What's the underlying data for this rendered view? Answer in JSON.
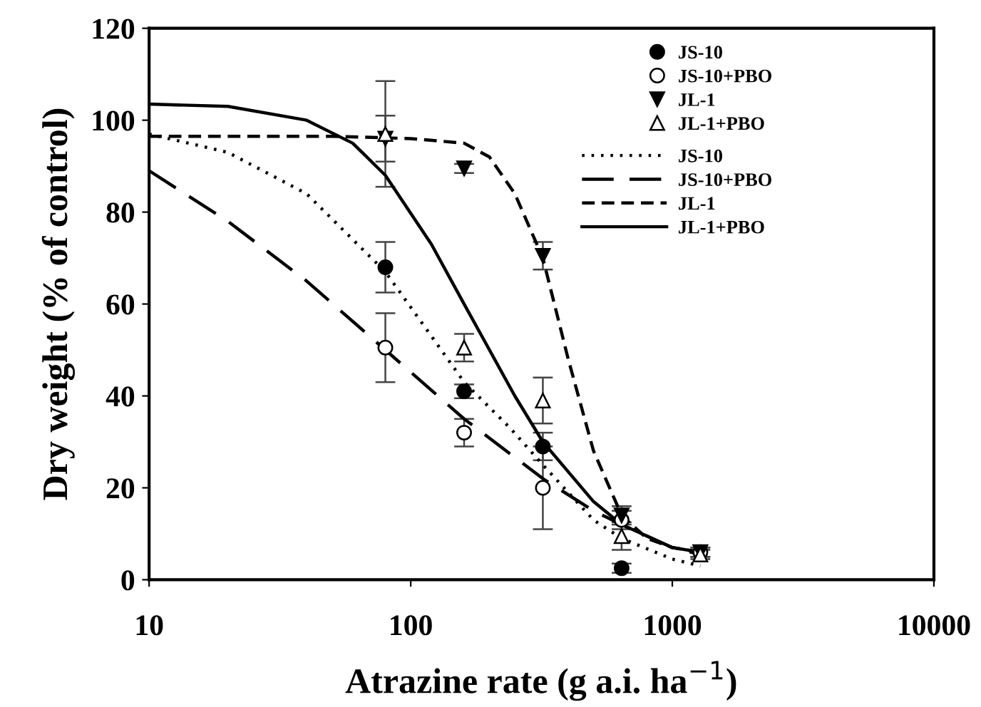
{
  "chart_data": {
    "type": "scatter",
    "xlabel": "Atrazine rate (g a.i. ha$^{−1}$)",
    "ylabel": "Dry weight (% of control)",
    "log": "x",
    "xlim": [
      10,
      10000
    ],
    "xticks": [
      10,
      100,
      1000,
      10000
    ],
    "ylim": [
      0,
      120
    ],
    "yticks": [
      0,
      20,
      40,
      60,
      80,
      100,
      120
    ],
    "grid": false,
    "legend": "top right",
    "series": [
      {
        "name": "JS-10",
        "marker": "circle",
        "color": "#000000",
        "x": [
          80,
          160,
          320,
          640
        ],
        "values": [
          68,
          41,
          29,
          2.5
        ],
        "errors": [
          5.5,
          1.5,
          3,
          1
        ]
      },
      {
        "name": "JS-10+PBO",
        "marker": "circle",
        "color": "#ffffff",
        "x": [
          80,
          160,
          320,
          640,
          1280
        ],
        "values": [
          50.5,
          32,
          20,
          13,
          6
        ],
        "errors": [
          7.5,
          3,
          9,
          2,
          1
        ]
      },
      {
        "name": "JL-1",
        "marker": "triangle_down",
        "color": "#000000",
        "x": [
          80,
          160,
          320,
          640,
          1280
        ],
        "values": [
          96,
          89.5,
          70.5,
          14,
          6
        ],
        "errors": [
          5,
          1,
          3,
          2,
          1
        ]
      },
      {
        "name": "JL-1+PBO",
        "marker": "triangle",
        "color": "#ffffff",
        "x": [
          80,
          160,
          320,
          640,
          1280
        ],
        "values": [
          97,
          50.5,
          39,
          9.5,
          5.5
        ],
        "errors": [
          11.5,
          3,
          5,
          3,
          1
        ]
      },
      {
        "name": "JS-10",
        "type": "line",
        "line_style": "dotted",
        "color": "#000000",
        "x": [
          10,
          20,
          40,
          80,
          120,
          160,
          240,
          320,
          500,
          640,
          1000,
          1280
        ],
        "values": [
          97,
          93,
          84,
          67,
          53,
          43,
          33,
          25,
          13,
          9,
          4.5,
          3
        ]
      },
      {
        "name": "JS-10+PBO",
        "type": "line",
        "line_style": "longdash",
        "color": "#000000",
        "x": [
          10,
          20,
          40,
          80,
          160,
          320,
          500,
          640,
          1000,
          1280
        ],
        "values": [
          89,
          78,
          65,
          50,
          35,
          22,
          15,
          12,
          7,
          5.5
        ]
      },
      {
        "name": "JL-1",
        "type": "line",
        "line_style": "dashed",
        "color": "#000000",
        "x": [
          10,
          50,
          100,
          160,
          200,
          250,
          320,
          400,
          500,
          640,
          800,
          1000,
          1280
        ],
        "values": [
          96.5,
          96.5,
          96,
          95,
          92,
          84,
          70,
          48,
          28,
          14,
          9,
          7,
          6
        ]
      },
      {
        "name": "JL-1+PBO",
        "type": "line",
        "line_style": "solid",
        "color": "#000000",
        "x": [
          10,
          20,
          40,
          60,
          80,
          120,
          160,
          200,
          250,
          320,
          500,
          640,
          1000,
          1280
        ],
        "values": [
          103.5,
          103,
          100,
          95,
          88,
          73,
          60,
          50,
          40,
          30,
          17,
          12,
          7,
          6
        ]
      }
    ]
  }
}
